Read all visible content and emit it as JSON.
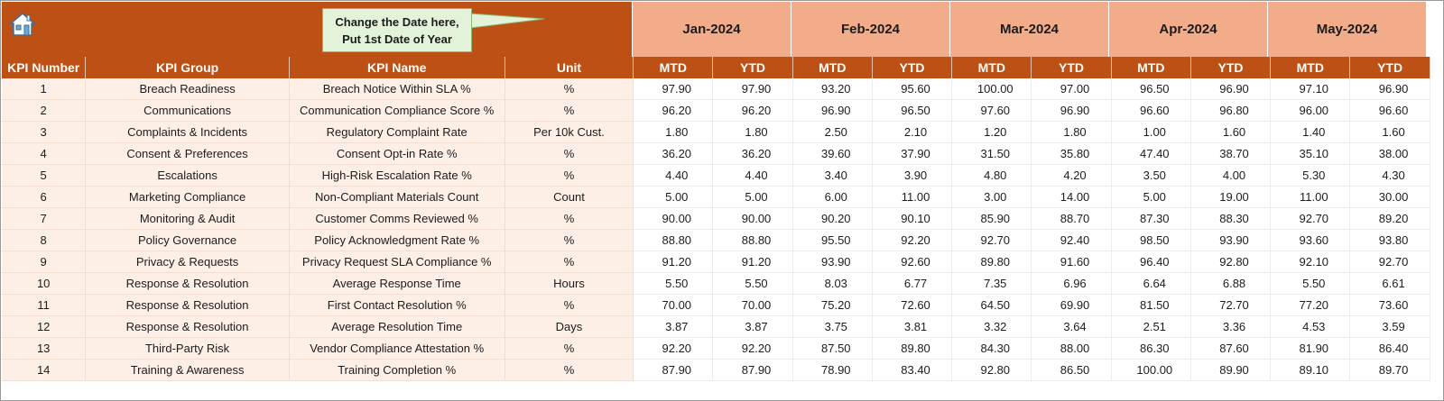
{
  "header": {
    "home_icon": "home-icon",
    "callout_line1": "Change the Date here,",
    "callout_line2": "Put 1st Date of Year",
    "months": [
      "Jan-2024",
      "Feb-2024",
      "Mar-2024",
      "Apr-2024",
      "May-2024"
    ]
  },
  "columns": {
    "kpi_number": "KPI Number",
    "kpi_group": "KPI Group",
    "kpi_name": "KPI Name",
    "unit": "Unit",
    "mtd": "MTD",
    "ytd": "YTD"
  },
  "rows": [
    {
      "num": "1",
      "group": "Breach Readiness",
      "name": "Breach Notice Within SLA %",
      "unit": "%",
      "values": [
        "97.90",
        "97.90",
        "93.20",
        "95.60",
        "100.00",
        "97.00",
        "96.50",
        "96.90",
        "97.10",
        "96.90"
      ]
    },
    {
      "num": "2",
      "group": "Communications",
      "name": "Communication Compliance Score %",
      "unit": "%",
      "values": [
        "96.20",
        "96.20",
        "96.90",
        "96.50",
        "97.60",
        "96.90",
        "96.60",
        "96.80",
        "96.00",
        "96.60"
      ]
    },
    {
      "num": "3",
      "group": "Complaints & Incidents",
      "name": "Regulatory Complaint Rate",
      "unit": "Per 10k Cust.",
      "values": [
        "1.80",
        "1.80",
        "2.50",
        "2.10",
        "1.20",
        "1.80",
        "1.00",
        "1.60",
        "1.40",
        "1.60"
      ]
    },
    {
      "num": "4",
      "group": "Consent & Preferences",
      "name": "Consent Opt-in Rate %",
      "unit": "%",
      "values": [
        "36.20",
        "36.20",
        "39.60",
        "37.90",
        "31.50",
        "35.80",
        "47.40",
        "38.70",
        "35.10",
        "38.00"
      ]
    },
    {
      "num": "5",
      "group": "Escalations",
      "name": "High-Risk Escalation Rate %",
      "unit": "%",
      "values": [
        "4.40",
        "4.40",
        "3.40",
        "3.90",
        "4.80",
        "4.20",
        "3.50",
        "4.00",
        "5.30",
        "4.30"
      ]
    },
    {
      "num": "6",
      "group": "Marketing Compliance",
      "name": "Non-Compliant Materials Count",
      "unit": "Count",
      "values": [
        "5.00",
        "5.00",
        "6.00",
        "11.00",
        "3.00",
        "14.00",
        "5.00",
        "19.00",
        "11.00",
        "30.00"
      ]
    },
    {
      "num": "7",
      "group": "Monitoring & Audit",
      "name": "Customer Comms Reviewed %",
      "unit": "%",
      "values": [
        "90.00",
        "90.00",
        "90.20",
        "90.10",
        "85.90",
        "88.70",
        "87.30",
        "88.30",
        "92.70",
        "89.20"
      ]
    },
    {
      "num": "8",
      "group": "Policy Governance",
      "name": "Policy Acknowledgment Rate %",
      "unit": "%",
      "values": [
        "88.80",
        "88.80",
        "95.50",
        "92.20",
        "92.70",
        "92.40",
        "98.50",
        "93.90",
        "93.60",
        "93.80"
      ]
    },
    {
      "num": "9",
      "group": "Privacy & Requests",
      "name": "Privacy Request SLA Compliance %",
      "unit": "%",
      "values": [
        "91.20",
        "91.20",
        "93.90",
        "92.60",
        "89.80",
        "91.60",
        "96.40",
        "92.80",
        "92.10",
        "92.70"
      ]
    },
    {
      "num": "10",
      "group": "Response & Resolution",
      "name": "Average Response Time",
      "unit": "Hours",
      "values": [
        "5.50",
        "5.50",
        "8.03",
        "6.77",
        "7.35",
        "6.96",
        "6.64",
        "6.88",
        "5.50",
        "6.61"
      ]
    },
    {
      "num": "11",
      "group": "Response & Resolution",
      "name": "First Contact Resolution %",
      "unit": "%",
      "values": [
        "70.00",
        "70.00",
        "75.20",
        "72.60",
        "64.50",
        "69.90",
        "81.50",
        "72.70",
        "77.20",
        "73.60"
      ]
    },
    {
      "num": "12",
      "group": "Response & Resolution",
      "name": "Average Resolution Time",
      "unit": "Days",
      "values": [
        "3.87",
        "3.87",
        "3.75",
        "3.81",
        "3.32",
        "3.64",
        "2.51",
        "3.36",
        "4.53",
        "3.59"
      ]
    },
    {
      "num": "13",
      "group": "Third-Party Risk",
      "name": "Vendor Compliance Attestation %",
      "unit": "%",
      "values": [
        "92.20",
        "92.20",
        "87.50",
        "89.80",
        "84.30",
        "88.00",
        "86.30",
        "87.60",
        "81.90",
        "86.40"
      ]
    },
    {
      "num": "14",
      "group": "Training & Awareness",
      "name": "Training Completion %",
      "unit": "%",
      "values": [
        "87.90",
        "87.90",
        "78.90",
        "83.40",
        "92.80",
        "86.50",
        "100.00",
        "89.90",
        "89.10",
        "89.70"
      ]
    }
  ],
  "colors": {
    "header_brown": "#bd5115",
    "month_peach": "#f2ac89",
    "row_tint": "#fdeee6",
    "callout_green": "#e2f3d9"
  }
}
